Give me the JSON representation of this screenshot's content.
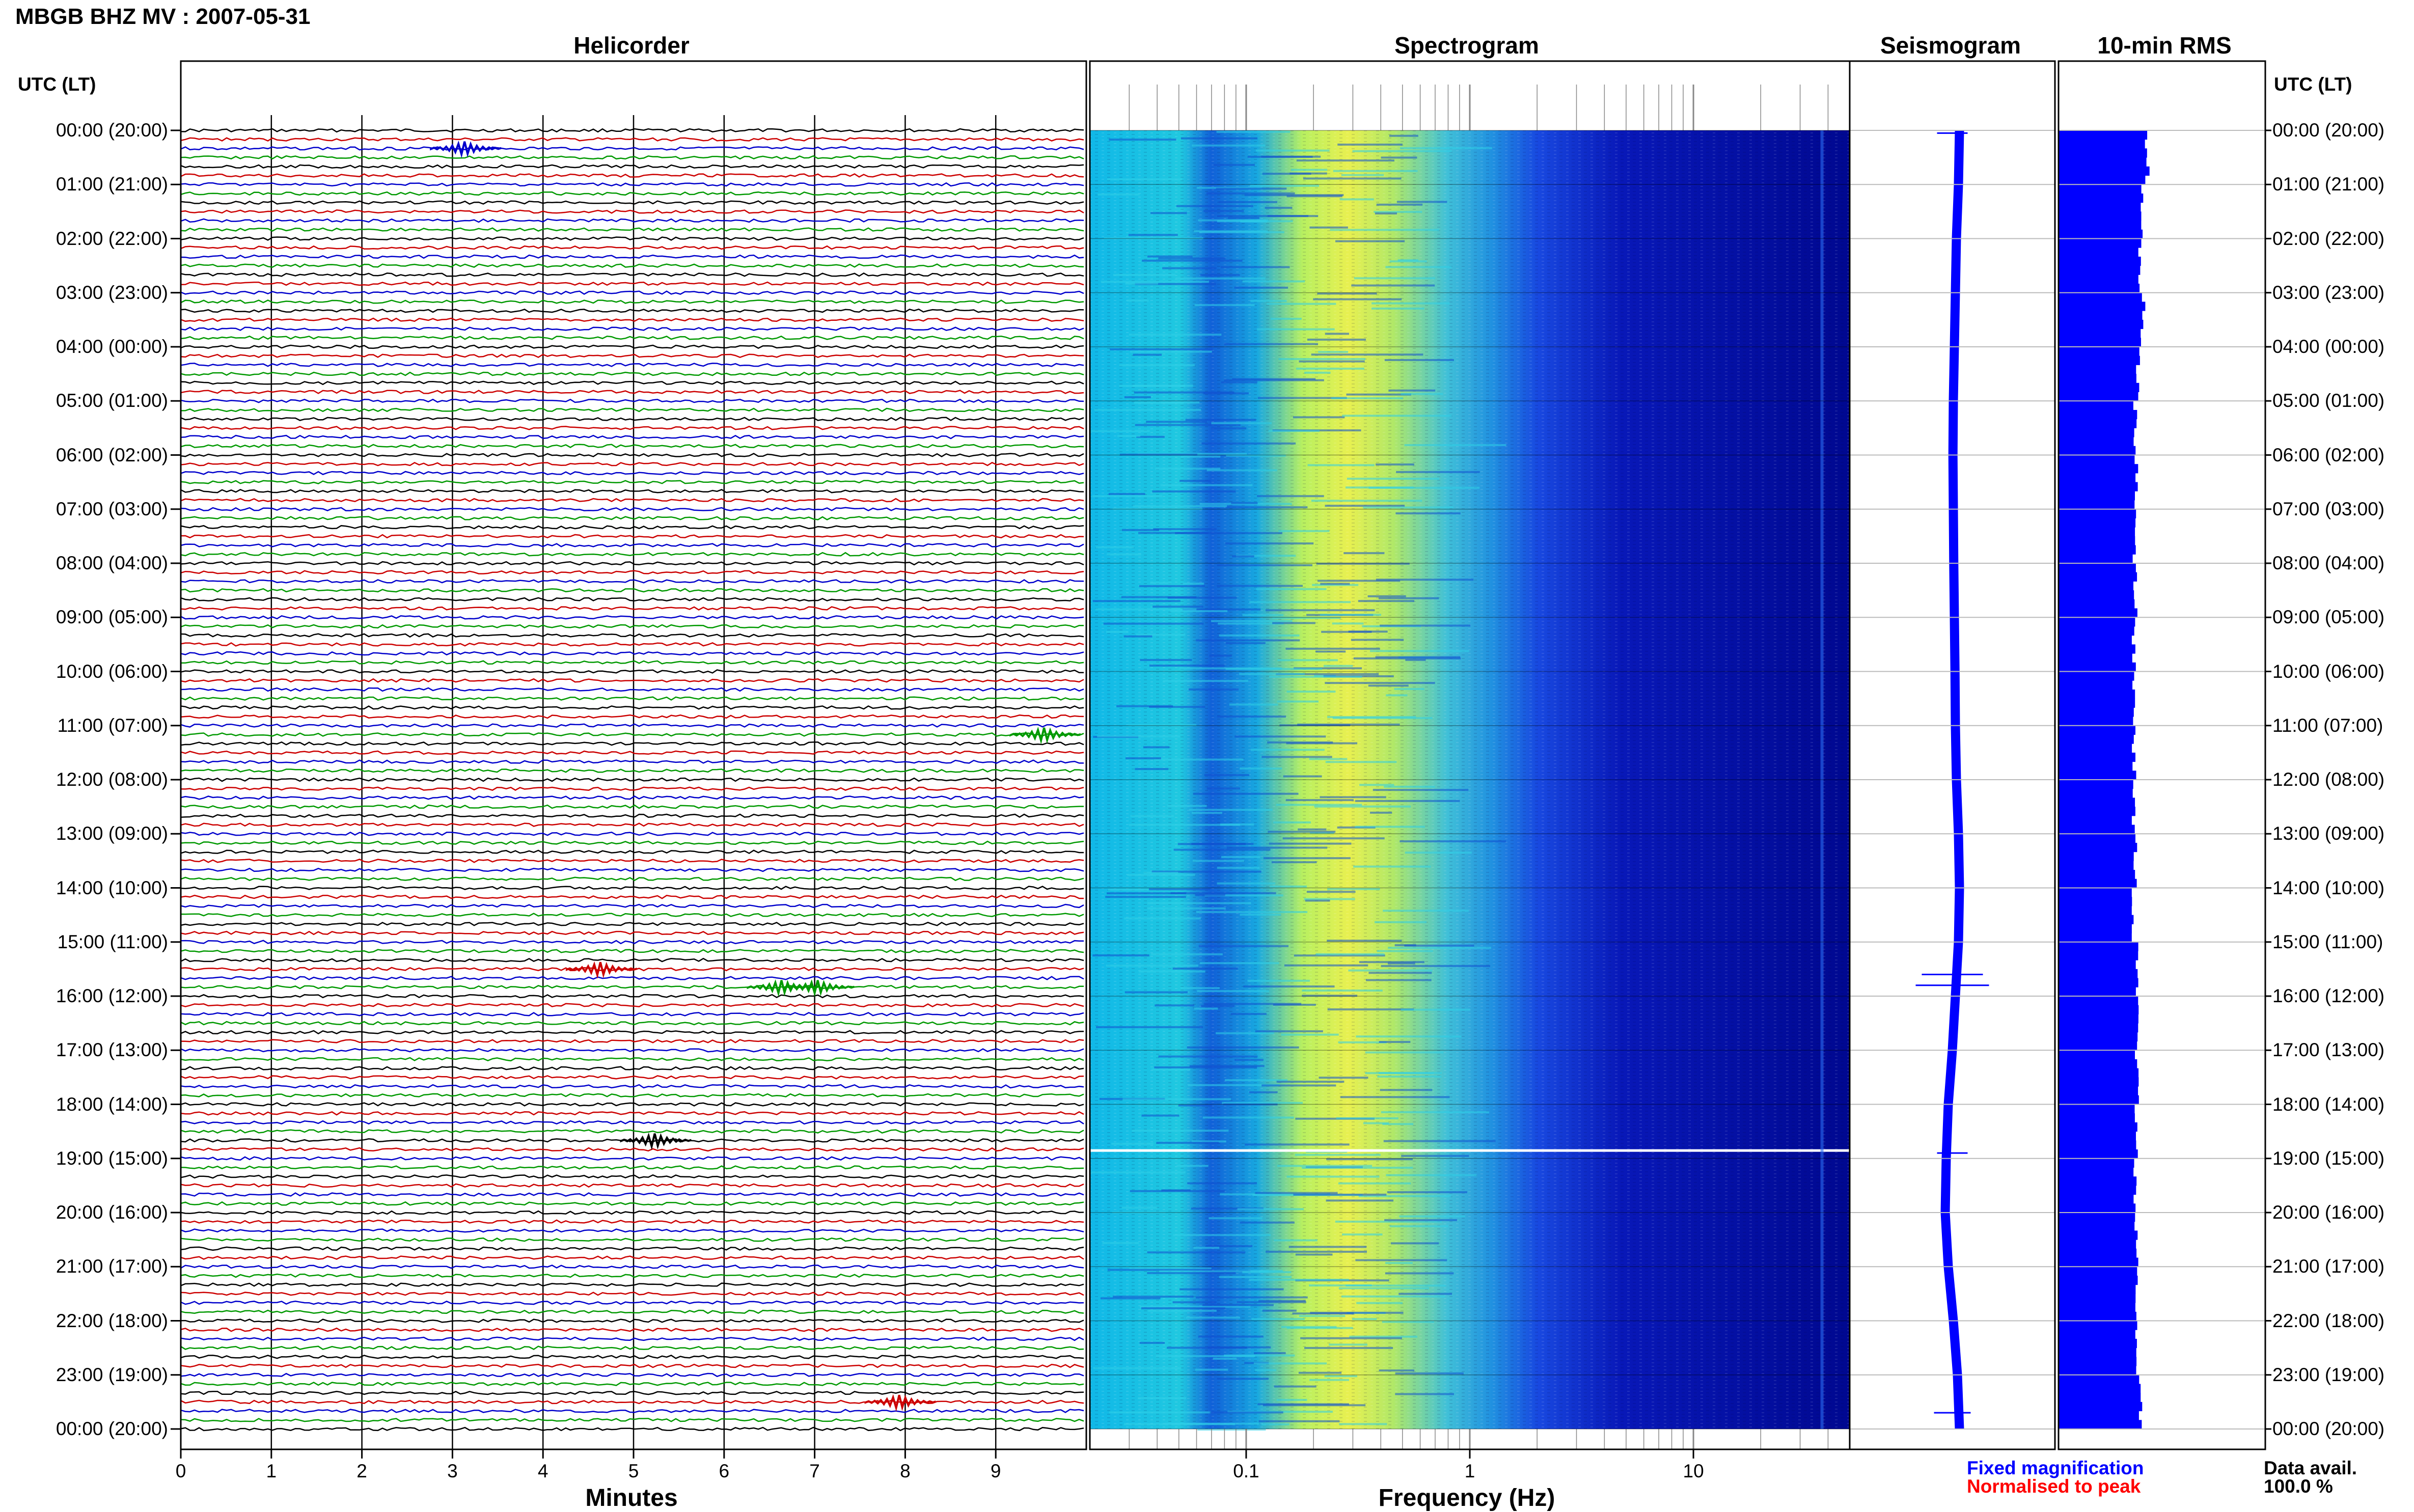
{
  "title": "MBGB BHZ MV : 2007-05-31",
  "panels": {
    "helicorder": "Helicorder",
    "spectrogram": "Spectrogram",
    "seismogram": "Seismogram",
    "rms": "10-min RMS"
  },
  "axis_left_header": "UTC (LT)",
  "axis_right_header": "UTC (LT)",
  "time_labels": [
    "00:00 (20:00)",
    "01:00 (21:00)",
    "02:00 (22:00)",
    "03:00 (23:00)",
    "04:00 (00:00)",
    "05:00 (01:00)",
    "06:00 (02:00)",
    "07:00 (03:00)",
    "08:00 (04:00)",
    "09:00 (05:00)",
    "10:00 (06:00)",
    "11:00 (07:00)",
    "12:00 (08:00)",
    "13:00 (09:00)",
    "14:00 (10:00)",
    "15:00 (11:00)",
    "16:00 (12:00)",
    "17:00 (13:00)",
    "18:00 (14:00)",
    "19:00 (15:00)",
    "20:00 (16:00)",
    "21:00 (17:00)",
    "22:00 (18:00)",
    "23:00 (19:00)",
    "00:00 (20:00)"
  ],
  "helicorder_xlabel": "Minutes",
  "helicorder_xticks": [
    "0",
    "1",
    "2",
    "3",
    "4",
    "5",
    "6",
    "7",
    "8",
    "9"
  ],
  "spectrogram_xlabel": "Frequency (Hz)",
  "spectrogram_xticks": [
    "0.1",
    "1",
    "10"
  ],
  "legend": {
    "fixed": "Fixed magnification",
    "fixed_color": "#0000ff",
    "normalised": "Normalised to peak",
    "normalised_color": "#ff0000"
  },
  "data_avail_label": "Data avail.",
  "data_avail_value": "100.0 %",
  "colors": {
    "trace_cycle": [
      "#000000",
      "#cc0000",
      "#0000cc",
      "#009900"
    ],
    "spectrogram_low": "#00008b",
    "spectrogram_high": "#f0f040",
    "seismogram": "#0000ff",
    "rms": "#0000ff"
  },
  "chart_data": [
    {
      "type": "line",
      "name": "helicorder",
      "xlabel": "Minutes",
      "xlim": [
        0,
        10
      ],
      "lines_per_hour": 6,
      "line_minutes": 10,
      "hours": 24,
      "events_minutes_utc": [
        {
          "hour": 0,
          "line": 2,
          "minute": 3.1
        },
        {
          "hour": 11,
          "line": 1,
          "minute": 9.5
        },
        {
          "hour": 15,
          "line": 3,
          "minute": 4.6
        },
        {
          "hour": 15,
          "line": 5,
          "minute": 6.6
        },
        {
          "hour": 15,
          "line": 5,
          "minute": 7.0
        },
        {
          "hour": 18,
          "line": 4,
          "minute": 5.2
        },
        {
          "hour": 23,
          "line": 3,
          "minute": 7.9
        }
      ]
    },
    {
      "type": "heatmap",
      "name": "spectrogram",
      "xlabel": "Frequency (Hz)",
      "xscale": "log",
      "xlim": [
        0.02,
        50
      ],
      "peak_band_hz": [
        0.2,
        0.5
      ],
      "low_energy_above_hz": 5
    },
    {
      "type": "line",
      "name": "seismogram",
      "hours": [
        0,
        1,
        2,
        3,
        4,
        5,
        6,
        7,
        8,
        9,
        10,
        11,
        12,
        13,
        14,
        15,
        16,
        17,
        18,
        19,
        20,
        21,
        22,
        23,
        24
      ],
      "relative_offset": [
        0.6,
        0.55,
        0.45,
        0.4,
        0.35,
        0.3,
        0.28,
        0.3,
        0.32,
        0.35,
        0.38,
        0.4,
        0.45,
        0.55,
        0.6,
        0.55,
        0.4,
        0.25,
        0.05,
        -0.05,
        -0.1,
        0.05,
        0.3,
        0.5,
        0.6
      ]
    },
    {
      "type": "bar",
      "name": "10-min RMS",
      "orientation": "horizontal",
      "hours": [
        0,
        1,
        2,
        3,
        4,
        5,
        6,
        7,
        8,
        9,
        10,
        11,
        12,
        13,
        14,
        15,
        16,
        17,
        18,
        19,
        20,
        21,
        22,
        23
      ],
      "relative_values": [
        1.0,
        0.93,
        0.92,
        0.95,
        0.9,
        0.86,
        0.88,
        0.86,
        0.87,
        0.85,
        0.84,
        0.85,
        0.85,
        0.86,
        0.85,
        0.88,
        0.9,
        0.88,
        0.87,
        0.87,
        0.88,
        0.88,
        0.87,
        0.93
      ]
    }
  ]
}
